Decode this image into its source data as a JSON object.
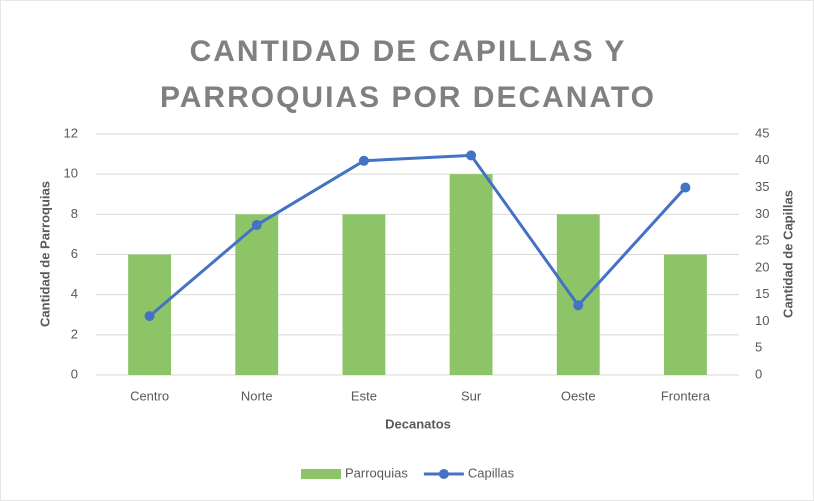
{
  "chart_data": {
    "type": "bar",
    "title": "CANTIDAD DE CAPILLAS Y PARROQUIAS POR DECANATO",
    "x_label": "Decanatos",
    "y_label": "Cantidad de Parroquias",
    "y2_label": "Cantidad de Capillas",
    "categories": [
      "Centro",
      "Norte",
      "Este",
      "Sur",
      "Oeste",
      "Frontera"
    ],
    "series": [
      {
        "name": "Parroquias",
        "type": "bar",
        "color": "#8dc467",
        "values": [
          6,
          8,
          8,
          10,
          8,
          6
        ]
      },
      {
        "name": "Capillas",
        "type": "line",
        "axis": "y2",
        "color": "#4472c4",
        "values": [
          11,
          28,
          40,
          41,
          13,
          35
        ]
      }
    ],
    "ylim": [
      0,
      12
    ],
    "yticks": [
      0,
      2,
      4,
      6,
      8,
      10,
      12
    ],
    "y2lim": [
      0,
      45
    ],
    "y2ticks": [
      0,
      5,
      10,
      15,
      20,
      25,
      30,
      35,
      40,
      45
    ],
    "grid": true,
    "legend": "bottom"
  }
}
